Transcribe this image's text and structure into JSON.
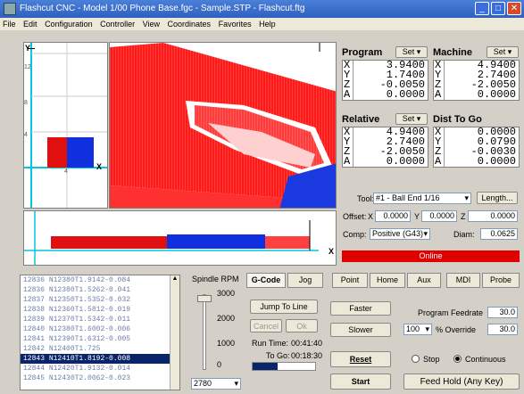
{
  "window": {
    "title": "Flashcut CNC - Model 1/00 Phone Base.fgc - Sample.STP - Flashcut.ftg"
  },
  "menu": [
    "File",
    "Edit",
    "Configuration",
    "Controller",
    "View",
    "Coordinates",
    "Favorites",
    "Help"
  ],
  "view2d": {
    "y_label": "Y",
    "x_label": "X",
    "ticks_y": [
      "12",
      "8",
      "4"
    ],
    "tick_x": "4"
  },
  "dro": {
    "program": {
      "title": "Program",
      "set": "Set ▾",
      "rows": [
        {
          "ax": "X",
          "v": "3.9400"
        },
        {
          "ax": "Y",
          "v": "1.7400"
        },
        {
          "ax": "Z",
          "v": "-0.0050"
        },
        {
          "ax": "A",
          "v": "0.0000"
        }
      ]
    },
    "machine": {
      "title": "Machine",
      "set": "Set ▾",
      "rows": [
        {
          "ax": "X",
          "v": "4.9400"
        },
        {
          "ax": "Y",
          "v": "2.7400"
        },
        {
          "ax": "Z",
          "v": "-2.0050"
        },
        {
          "ax": "A",
          "v": "0.0000"
        }
      ]
    },
    "relative": {
      "title": "Relative",
      "set": "Set ▾",
      "rows": [
        {
          "ax": "X",
          "v": "4.9400"
        },
        {
          "ax": "Y",
          "v": "2.7400"
        },
        {
          "ax": "Z",
          "v": "-2.0050"
        },
        {
          "ax": "A",
          "v": "0.0000"
        }
      ]
    },
    "dist": {
      "title": "Dist To Go",
      "rows": [
        {
          "ax": "X",
          "v": "0.0000"
        },
        {
          "ax": "Y",
          "v": "0.0790"
        },
        {
          "ax": "Z",
          "v": "-0.0030"
        },
        {
          "ax": "A",
          "v": "0.0000"
        }
      ]
    }
  },
  "tool": {
    "label": "Tool:",
    "value": "#1 - Ball End 1/16",
    "length_btn": "Length...",
    "offset_label": "Offset:",
    "ox_label": "X",
    "ox": "0.0000",
    "oy_label": "Y",
    "oy": "0.0000",
    "oz_label": "Z",
    "oz": "0.0000",
    "comp_label": "Comp:",
    "comp": "Positive (G43)",
    "diam_label": "Diam:",
    "diam": "0.0625"
  },
  "status": {
    "online": "Online",
    "online_color": "#e00000"
  },
  "gcode": [
    {
      "n": "12836",
      "t": "N12380T1.9142-0.084"
    },
    {
      "n": "12836",
      "t": "N12380T1.5262-0.041"
    },
    {
      "n": "12837",
      "t": "N12350T1.5352-0.032"
    },
    {
      "n": "12838",
      "t": "N12360T1.5812-0.019"
    },
    {
      "n": "12839",
      "t": "N12370T1.5342-0.011"
    },
    {
      "n": "12840",
      "t": "N12380T1.6002-0.006"
    },
    {
      "n": "12841",
      "t": "N12390T1.6312-0.005"
    },
    {
      "n": "12842",
      "t": "N12400T1.725"
    },
    {
      "n": "12843",
      "t": "N12410T1.8192-0.008"
    },
    {
      "n": "12844",
      "t": "N12420T1.9132-0.014"
    },
    {
      "n": "12845",
      "t": "N12430T2.0062-0.023"
    }
  ],
  "spindle": {
    "title": "Spindle RPM",
    "ticks": [
      "3000",
      "2000",
      "1000",
      "0"
    ],
    "value": "2780"
  },
  "tabs": [
    "G-Code",
    "Jog",
    "Point",
    "Home",
    "Aux",
    "MDI",
    "Probe"
  ],
  "controls": {
    "jump": "Jump To Line",
    "cancel": "Cancel",
    "ok": "Ok",
    "runtime_label": "Run Time:",
    "runtime": "00:41:40",
    "togo_label": "To Go:",
    "togo": "00:18:30",
    "faster": "Faster",
    "slower": "Slower",
    "feed_label": "Program Feedrate",
    "feed": "30.0",
    "override_sel": "100",
    "override_label": "% Override",
    "override": "30.0",
    "reset": "Reset",
    "stop": "Stop",
    "continuous": "Continuous",
    "start": "Start",
    "feedhold": "Feed Hold (Any Key)"
  }
}
